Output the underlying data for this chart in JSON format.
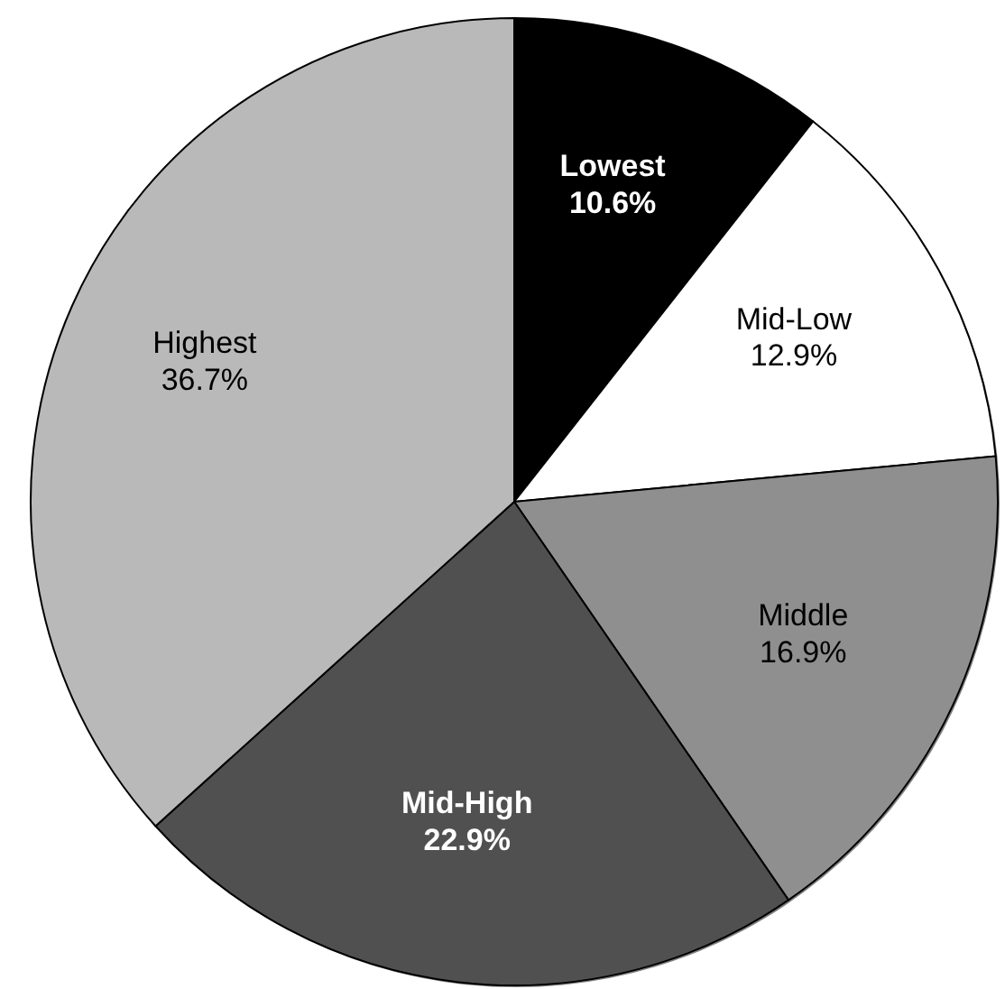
{
  "chart_data": {
    "type": "pie",
    "categories": [
      "Lowest",
      "Mid-Low",
      "Middle",
      "Mid-High",
      "Highest"
    ],
    "values": [
      10.6,
      12.9,
      16.9,
      22.9,
      36.7
    ],
    "colors": [
      "#000000",
      "#ffffff",
      "#8f8f8f",
      "#505050",
      "#b9b9b9"
    ],
    "value_labels": [
      "10.6%",
      "12.9%",
      "16.9%",
      "22.9%",
      "36.7%"
    ]
  }
}
